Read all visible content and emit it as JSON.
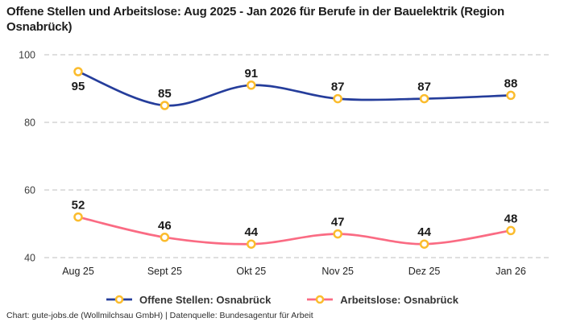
{
  "title": "Offene Stellen und Arbeitslose: Aug 2025 - Jan 2026 für Berufe in der Bauelektrik (Region Osnabrück)",
  "footer": "Chart: gute-jobs.de (Wollmilchsau GmbH) | Datenquelle: Bundesagentur für Arbeit",
  "colors": {
    "grid": "#cccccc",
    "marker_stroke": "#fbbc2d",
    "marker_fill": "#ffffff",
    "label_text": "#1a1a1a",
    "tick_text": "#3c3c3c"
  },
  "chart_data": {
    "type": "line",
    "title": "Offene Stellen und Arbeitslose: Aug 2025 - Jan 2026 für Berufe in der Bauelektrik (Region Osnabrück)",
    "categories": [
      "Aug 25",
      "Sept 25",
      "Okt 25",
      "Nov 25",
      "Dez 25",
      "Jan 26"
    ],
    "series": [
      {
        "name": "Offene Stellen: Osnabrück",
        "color": "#253d9b",
        "values": [
          95,
          85,
          91,
          87,
          87,
          88
        ]
      },
      {
        "name": "Arbeitslose: Osnabrück",
        "color": "#fa6b83",
        "values": [
          52,
          46,
          44,
          47,
          44,
          48
        ]
      }
    ],
    "yticks": [
      40,
      60,
      80,
      100
    ],
    "ylim": [
      40,
      100
    ],
    "xlabel": "",
    "ylabel": "",
    "grid": "horizontal-dashed",
    "legend_position": "bottom",
    "marker": "ring"
  }
}
